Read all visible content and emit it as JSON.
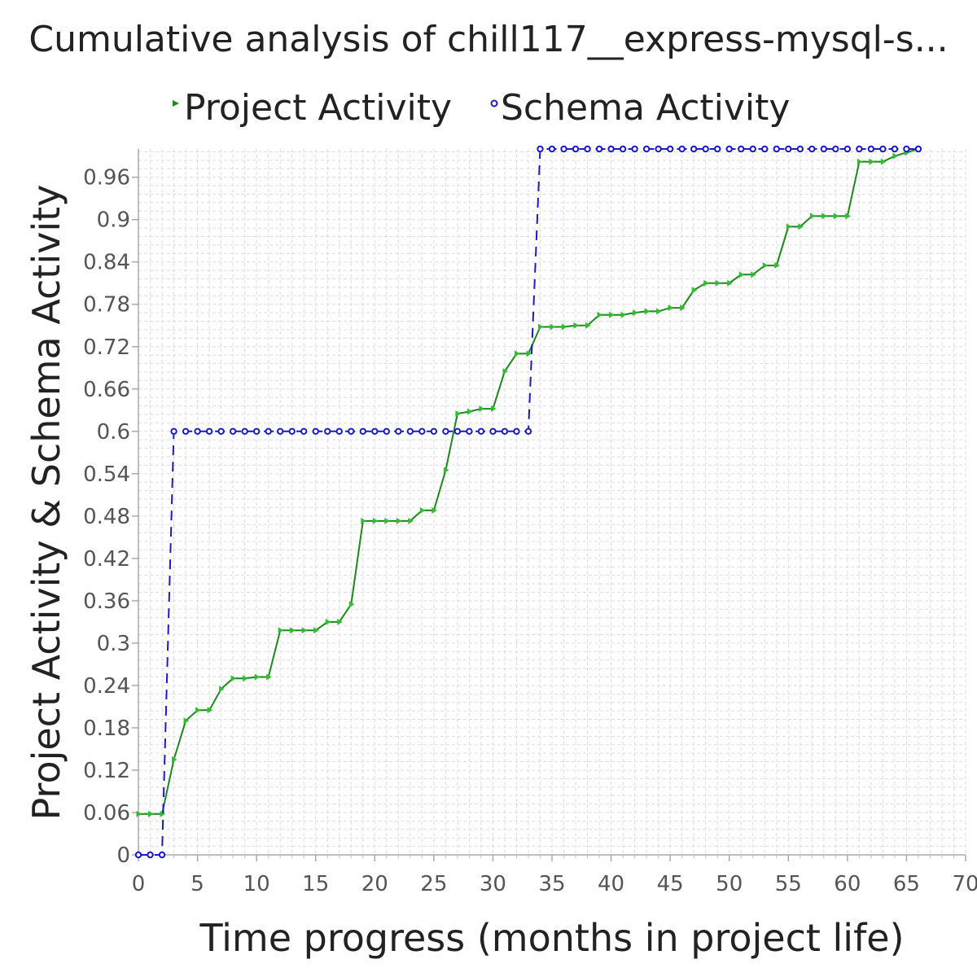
{
  "chart_data": {
    "type": "line",
    "title": "Cumulative analysis of chill117__express-mysql-s...",
    "xlabel": "Time progress (months in project life)",
    "ylabel": "Project Activity & Schema Activity",
    "xlim": [
      0,
      70
    ],
    "ylim": [
      0,
      1.0
    ],
    "xticks": [
      0,
      5,
      10,
      15,
      20,
      25,
      30,
      35,
      40,
      45,
      50,
      55,
      60,
      65,
      70
    ],
    "yticks": [
      0,
      0.06,
      0.12,
      0.18,
      0.24,
      0.3,
      0.36,
      0.42,
      0.48,
      0.54,
      0.6,
      0.66,
      0.72,
      0.78,
      0.84,
      0.9,
      0.96
    ],
    "ytick_labels": [
      "0",
      "0.06",
      "0.12",
      "0.18",
      "0.24",
      "0.3",
      "0.36",
      "0.42",
      "0.48",
      "0.54",
      "0.6",
      "0.66",
      "0.72",
      "0.78",
      "0.84",
      "0.9",
      "0.96"
    ],
    "grid": true,
    "legend_position": "top",
    "series": [
      {
        "name": "Project Activity",
        "color": "#1a8a1a",
        "marker": "triangle-right",
        "line_style": "solid",
        "x": [
          0,
          1,
          2,
          3,
          4,
          5,
          6,
          7,
          8,
          9,
          10,
          11,
          12,
          13,
          14,
          15,
          16,
          17,
          18,
          19,
          20,
          21,
          22,
          23,
          24,
          25,
          26,
          27,
          28,
          29,
          30,
          31,
          32,
          33,
          34,
          35,
          36,
          37,
          38,
          39,
          40,
          41,
          42,
          43,
          44,
          45,
          46,
          47,
          48,
          49,
          50,
          51,
          52,
          53,
          54,
          55,
          56,
          57,
          58,
          59,
          60,
          61,
          62,
          63,
          64,
          65,
          66
        ],
        "y": [
          0.058,
          0.058,
          0.058,
          0.135,
          0.19,
          0.205,
          0.205,
          0.235,
          0.25,
          0.25,
          0.252,
          0.252,
          0.318,
          0.318,
          0.318,
          0.318,
          0.33,
          0.33,
          0.355,
          0.473,
          0.473,
          0.473,
          0.473,
          0.473,
          0.488,
          0.488,
          0.545,
          0.625,
          0.628,
          0.632,
          0.632,
          0.685,
          0.71,
          0.71,
          0.748,
          0.748,
          0.748,
          0.75,
          0.75,
          0.765,
          0.765,
          0.765,
          0.768,
          0.77,
          0.77,
          0.775,
          0.775,
          0.8,
          0.81,
          0.81,
          0.81,
          0.822,
          0.822,
          0.835,
          0.835,
          0.89,
          0.89,
          0.905,
          0.905,
          0.905,
          0.905,
          0.982,
          0.982,
          0.982,
          0.99,
          0.995,
          1.0
        ]
      },
      {
        "name": "Schema Activity",
        "color": "#1a1acc",
        "marker": "circle",
        "line_style": "dashed",
        "x": [
          0,
          1,
          2,
          3,
          4,
          5,
          6,
          7,
          8,
          9,
          10,
          11,
          12,
          13,
          14,
          15,
          16,
          17,
          18,
          19,
          20,
          21,
          22,
          23,
          24,
          25,
          26,
          27,
          28,
          29,
          30,
          31,
          32,
          33,
          34,
          35,
          36,
          37,
          38,
          39,
          40,
          41,
          42,
          43,
          44,
          45,
          46,
          47,
          48,
          49,
          50,
          51,
          52,
          53,
          54,
          55,
          56,
          57,
          58,
          59,
          60,
          61,
          62,
          63,
          64,
          65,
          66
        ],
        "y": [
          0,
          0,
          0,
          0.6,
          0.6,
          0.6,
          0.6,
          0.6,
          0.6,
          0.6,
          0.6,
          0.6,
          0.6,
          0.6,
          0.6,
          0.6,
          0.6,
          0.6,
          0.6,
          0.6,
          0.6,
          0.6,
          0.6,
          0.6,
          0.6,
          0.6,
          0.6,
          0.6,
          0.6,
          0.6,
          0.6,
          0.6,
          0.6,
          0.6,
          1.0,
          1.0,
          1.0,
          1.0,
          1.0,
          1.0,
          1.0,
          1.0,
          1.0,
          1.0,
          1.0,
          1.0,
          1.0,
          1.0,
          1.0,
          1.0,
          1.0,
          1.0,
          1.0,
          1.0,
          1.0,
          1.0,
          1.0,
          1.0,
          1.0,
          1.0,
          1.0,
          1.0,
          1.0,
          1.0,
          1.0,
          1.0,
          1.0
        ]
      }
    ]
  }
}
